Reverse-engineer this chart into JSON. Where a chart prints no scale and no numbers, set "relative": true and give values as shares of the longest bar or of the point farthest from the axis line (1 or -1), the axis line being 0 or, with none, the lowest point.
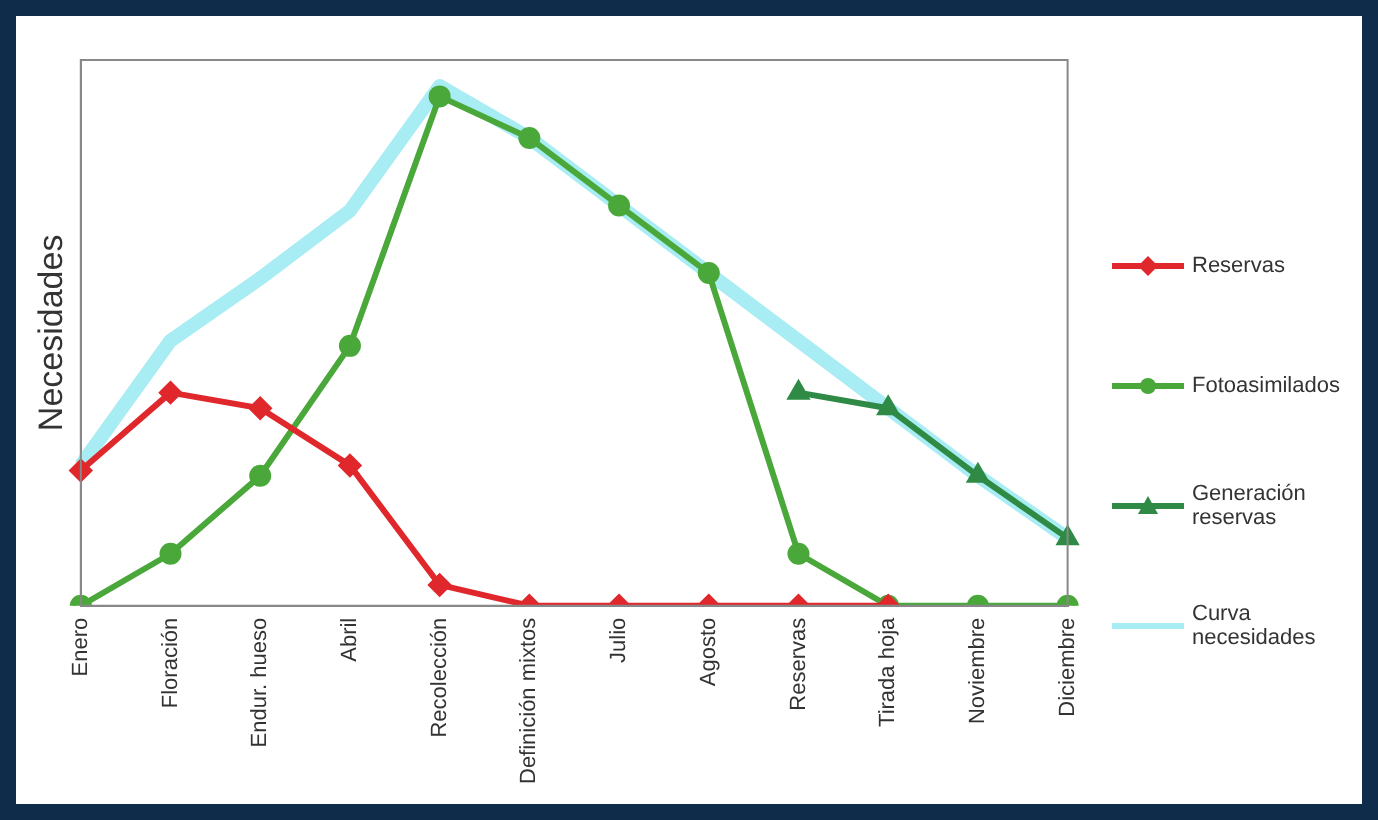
{
  "chart_data": {
    "type": "line",
    "relative": true,
    "ylabel": "Necesidades",
    "legend": "right",
    "grid": false,
    "line_style": "solid",
    "categories": [
      "Enero",
      "Floración",
      "Endur. hueso",
      "Abril",
      "Recolección",
      "Definición mixtos",
      "Julio",
      "Agosto",
      "Reservas",
      "Tirada hoja",
      "Noviembre",
      "Diciembre"
    ],
    "series": [
      {
        "name": "Reservas",
        "color": "#e0282c",
        "marker": "diamond",
        "values": [
          0.26,
          0.41,
          0.38,
          0.27,
          0.04,
          0,
          0,
          0,
          0,
          0,
          null,
          null
        ]
      },
      {
        "name": "Fotoasimilados",
        "color": "#4aa83a",
        "marker": "circle",
        "values": [
          0,
          0.1,
          0.25,
          0.5,
          0.98,
          0.9,
          0.77,
          0.64,
          0.1,
          0,
          0,
          0
        ]
      },
      {
        "name": "Generación reservas",
        "color": "#2e8a44",
        "marker": "triangle",
        "values": [
          null,
          null,
          null,
          null,
          null,
          null,
          null,
          null,
          0.41,
          0.38,
          0.25,
          0.13
        ]
      },
      {
        "name": "Curva necesidades",
        "color": "#a8ecf4",
        "marker": "none",
        "values": [
          0.27,
          0.51,
          0.63,
          0.76,
          1,
          0.9,
          0.77,
          0.64,
          0.51,
          0.38,
          0.25,
          0.13
        ]
      }
    ]
  }
}
